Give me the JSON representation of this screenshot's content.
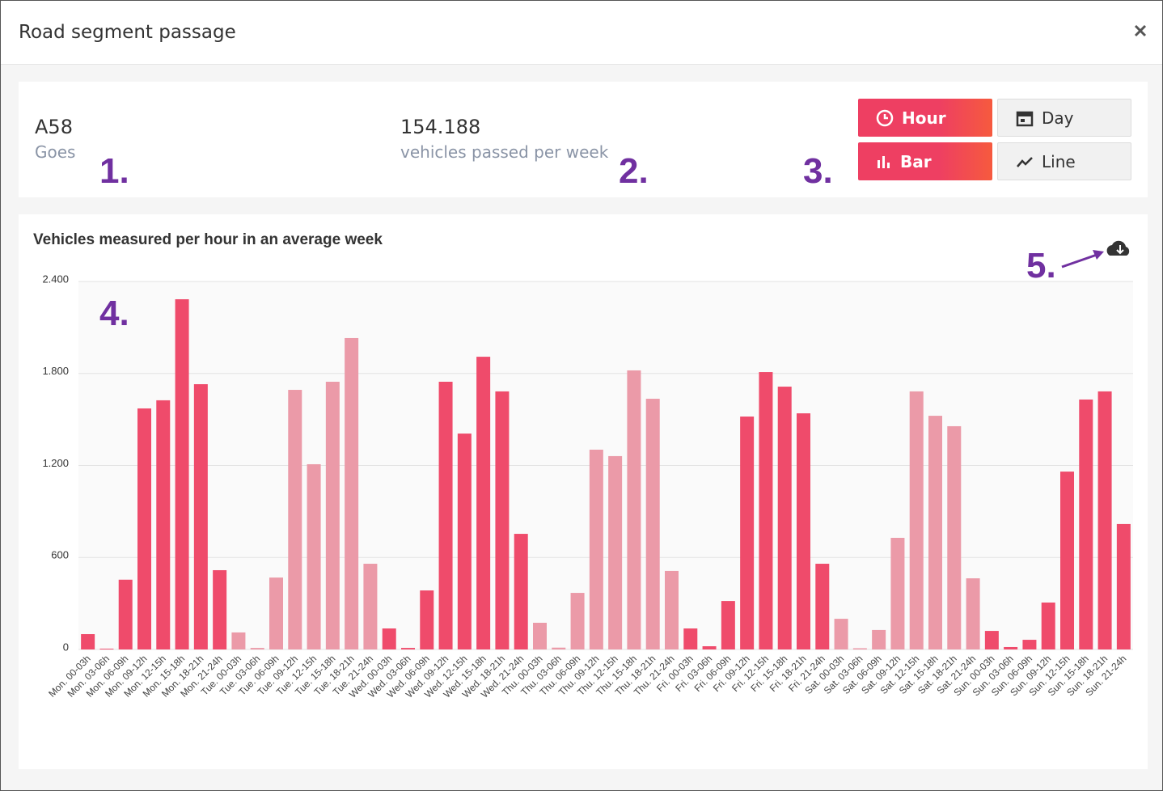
{
  "dialog": {
    "title": "Road segment passage"
  },
  "summary": {
    "road": "A58",
    "direction": "Goes",
    "count": "154.188",
    "count_label": "vehicles passed per week"
  },
  "buttons": {
    "hour": "Hour",
    "day": "Day",
    "bar": "Bar",
    "line": "Line"
  },
  "annotations": [
    "1.",
    "2.",
    "3.",
    "4.",
    "5."
  ],
  "chart_data": {
    "type": "bar",
    "title": "Vehicles measured per hour in an average week",
    "categories": [
      "Mon. 00-03h",
      "Mon. 03-06h",
      "Mon. 06-09h",
      "Mon. 09-12h",
      "Mon. 12-15h",
      "Mon. 15-18h",
      "Mon. 18-21h",
      "Mon. 21-24h",
      "Tue. 00-03h",
      "Tue. 03-06h",
      "Tue. 06-09h",
      "Tue. 09-12h",
      "Tue. 12-15h",
      "Tue. 15-18h",
      "Tue. 18-21h",
      "Tue. 21-24h",
      "Wed. 00-03h",
      "Wed. 03-06h",
      "Wed. 06-09h",
      "Wed. 09-12h",
      "Wed. 12-15h",
      "Wed. 15-18h",
      "Wed. 18-21h",
      "Wed. 21-24h",
      "Thu. 00-03h",
      "Thu. 03-06h",
      "Thu. 06-09h",
      "Thu. 09-12h",
      "Thu. 12-15h",
      "Thu. 15-18h",
      "Thu. 18-21h",
      "Thu. 21-24h",
      "Fri. 00-03h",
      "Fri. 03-06h",
      "Fri. 06-09h",
      "Fri. 09-12h",
      "Fri. 12-15h",
      "Fri. 15-18h",
      "Fri. 18-21h",
      "Fri. 21-24h",
      "Sat. 00-03h",
      "Sat. 03-06h",
      "Sat. 06-09h",
      "Sat. 09-12h",
      "Sat. 12-15h",
      "Sat. 15-18h",
      "Sat. 18-21h",
      "Sat. 21-24h",
      "Sun. 00-03h",
      "Sun. 03-06h",
      "Sun. 06-09h",
      "Sun. 09-12h",
      "Sun. 12-15h",
      "Sun. 15-18h",
      "Sun. 18-21h",
      "Sun. 21-24h"
    ],
    "values": [
      100,
      5,
      455,
      1572,
      1625,
      2284,
      1730,
      517,
      111,
      10,
      469,
      1693,
      1208,
      1746,
      2031,
      559,
      137,
      10,
      385,
      1746,
      1408,
      1909,
      1683,
      754,
      174,
      12,
      369,
      1303,
      1261,
      1820,
      1635,
      512,
      137,
      21,
      316,
      1519,
      1809,
      1714,
      1540,
      559,
      200,
      8,
      127,
      728,
      1683,
      1524,
      1456,
      464,
      121,
      16,
      63,
      306,
      1160,
      1630,
      1683,
      818
    ],
    "colors": [
      "#ef4b6b",
      "#ef4b6b",
      "#ef4b6b",
      "#ef4b6b",
      "#ef4b6b",
      "#ef4b6b",
      "#ef4b6b",
      "#ef4b6b",
      "#eb9aa8",
      "#eb9aa8",
      "#eb9aa8",
      "#eb9aa8",
      "#eb9aa8",
      "#eb9aa8",
      "#eb9aa8",
      "#eb9aa8",
      "#ef4b6b",
      "#ef4b6b",
      "#ef4b6b",
      "#ef4b6b",
      "#ef4b6b",
      "#ef4b6b",
      "#ef4b6b",
      "#ef4b6b",
      "#eb9aa8",
      "#eb9aa8",
      "#eb9aa8",
      "#eb9aa8",
      "#eb9aa8",
      "#eb9aa8",
      "#eb9aa8",
      "#eb9aa8",
      "#ef4b6b",
      "#ef4b6b",
      "#ef4b6b",
      "#ef4b6b",
      "#ef4b6b",
      "#ef4b6b",
      "#ef4b6b",
      "#ef4b6b",
      "#eb9aa8",
      "#eb9aa8",
      "#eb9aa8",
      "#eb9aa8",
      "#eb9aa8",
      "#eb9aa8",
      "#eb9aa8",
      "#eb9aa8",
      "#ef4b6b",
      "#ef4b6b",
      "#ef4b6b",
      "#ef4b6b",
      "#ef4b6b",
      "#ef4b6b",
      "#ef4b6b",
      "#ef4b6b"
    ],
    "ylim": [
      0,
      2400
    ],
    "yticks": [
      0,
      600,
      {
        "value": 1200,
        "label": "1.200"
      },
      {
        "value": 1800,
        "label": "1.800"
      },
      {
        "value": 2400,
        "label": "2.400"
      }
    ],
    "grid": true
  }
}
